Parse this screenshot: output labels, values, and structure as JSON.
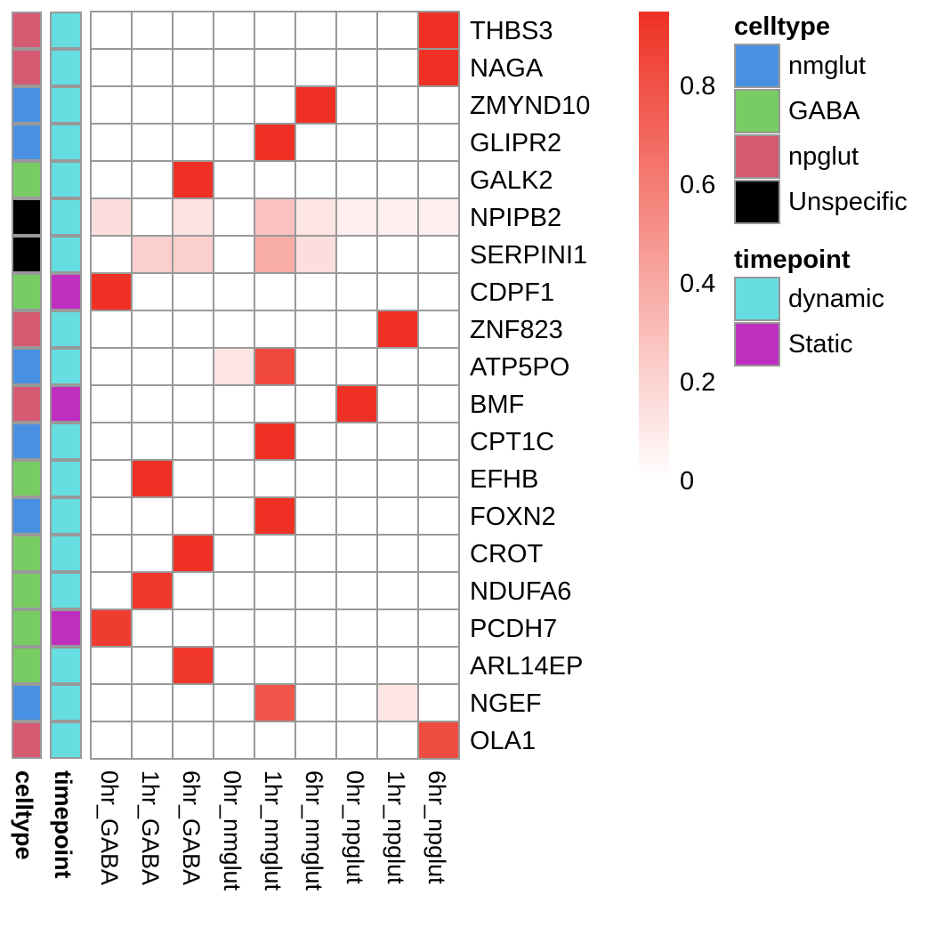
{
  "chart_data": {
    "type": "heatmap",
    "rows": [
      "THBS3",
      "NAGA",
      "ZMYND10",
      "GLIPR2",
      "GALK2",
      "NPIPB2",
      "SERPINI1",
      "CDPF1",
      "ZNF823",
      "ATP5PO",
      "BMF",
      "CPT1C",
      "EFHB",
      "FOXN2",
      "CROT",
      "NDUFA6",
      "PCDH7",
      "ARL14EP",
      "NGEF",
      "OLA1"
    ],
    "columns": [
      "0hr_GABA",
      "1hr_GABA",
      "6hr_GABA",
      "0hr_nmglut",
      "1hr_nmglut",
      "6hr_nmglut",
      "0hr_npglut",
      "1hr_npglut",
      "6hr_npglut"
    ],
    "values": [
      [
        0,
        0,
        0,
        0,
        0,
        0,
        0,
        0,
        0.95
      ],
      [
        0,
        0,
        0,
        0,
        0,
        0,
        0,
        0,
        0.95
      ],
      [
        0,
        0,
        0,
        0,
        0,
        0.95,
        0,
        0,
        0
      ],
      [
        0,
        0,
        0,
        0,
        0.95,
        0,
        0,
        0,
        0
      ],
      [
        0,
        0,
        0.95,
        0,
        0,
        0,
        0,
        0,
        0
      ],
      [
        0.15,
        0,
        0.13,
        0,
        0.28,
        0.12,
        0.08,
        0.08,
        0.08
      ],
      [
        0,
        0.22,
        0.22,
        0,
        0.38,
        0.15,
        0,
        0,
        0
      ],
      [
        0.95,
        0,
        0,
        0,
        0,
        0,
        0,
        0,
        0
      ],
      [
        0,
        0,
        0,
        0,
        0,
        0,
        0,
        0.95,
        0
      ],
      [
        0,
        0,
        0,
        0.12,
        0.85,
        0,
        0,
        0,
        0
      ],
      [
        0,
        0,
        0,
        0,
        0,
        0,
        0.95,
        0,
        0
      ],
      [
        0,
        0,
        0,
        0,
        0.95,
        0,
        0,
        0,
        0
      ],
      [
        0,
        0.95,
        0,
        0,
        0,
        0,
        0,
        0,
        0
      ],
      [
        0,
        0,
        0,
        0,
        0.95,
        0,
        0,
        0,
        0
      ],
      [
        0,
        0,
        0.95,
        0,
        0,
        0,
        0,
        0,
        0
      ],
      [
        0,
        0.92,
        0,
        0,
        0,
        0,
        0,
        0,
        0
      ],
      [
        0.9,
        0,
        0,
        0,
        0,
        0,
        0,
        0,
        0
      ],
      [
        0,
        0,
        0.92,
        0,
        0,
        0,
        0,
        0,
        0
      ],
      [
        0,
        0,
        0,
        0,
        0.78,
        0,
        0,
        0.12,
        0
      ],
      [
        0,
        0,
        0,
        0,
        0,
        0,
        0,
        0,
        0.82
      ]
    ],
    "row_annotations": {
      "celltype": [
        "npglut",
        "npglut",
        "nmglut",
        "nmglut",
        "GABA",
        "Unspecific",
        "Unspecific",
        "GABA",
        "npglut",
        "nmglut",
        "npglut",
        "nmglut",
        "GABA",
        "nmglut",
        "GABA",
        "GABA",
        "GABA",
        "GABA",
        "nmglut",
        "npglut"
      ],
      "timepoint": [
        "dynamic",
        "dynamic",
        "dynamic",
        "dynamic",
        "dynamic",
        "dynamic",
        "dynamic",
        "Static",
        "dynamic",
        "dynamic",
        "Static",
        "dynamic",
        "dynamic",
        "dynamic",
        "dynamic",
        "dynamic",
        "Static",
        "dynamic",
        "dynamic",
        "dynamic"
      ]
    },
    "annotation_labels": [
      "celltype",
      "timepoint"
    ],
    "colorbar": {
      "min": 0,
      "max": 0.95,
      "ticks": [
        0,
        0.2,
        0.4,
        0.6,
        0.8
      ],
      "tick_labels": [
        "0",
        "0.2",
        "0.4",
        "0.6",
        "0.8"
      ],
      "low_color": "#ffffff",
      "high_color": "#ee3124"
    },
    "legends": [
      {
        "title": "celltype",
        "items": [
          {
            "label": "nmglut",
            "color": "#4a90e2"
          },
          {
            "label": "GABA",
            "color": "#78cc63"
          },
          {
            "label": "npglut",
            "color": "#d65a70"
          },
          {
            "label": "Unspecific",
            "color": "#000000"
          }
        ]
      },
      {
        "title": "timepoint",
        "items": [
          {
            "label": "dynamic",
            "color": "#66dde0"
          },
          {
            "label": "Static",
            "color": "#bf2fbf"
          }
        ]
      }
    ]
  }
}
